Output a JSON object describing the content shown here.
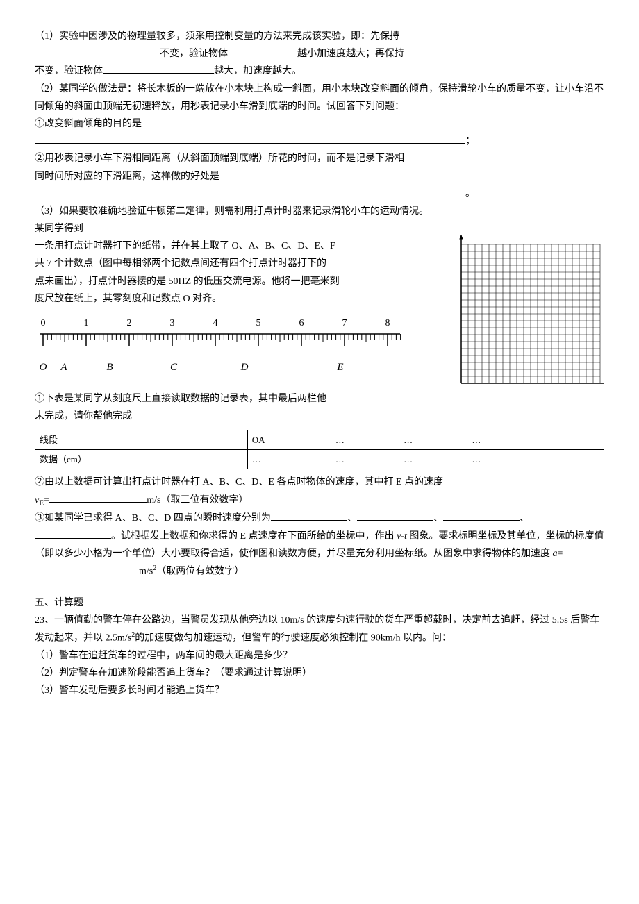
{
  "p1": {
    "line1_pre": "（1）实验中因涉及的物理量较多，须采用控制变量的方法来完成该实验，即：先保持",
    "line2_mid1": "不变，验证物体",
    "line2_mid2": "越小加速度越大；再保持",
    "line3_mid": "不变，验证物体",
    "line3_end": "越大，加速度越大。"
  },
  "p2": {
    "intro": "（2）某同学的做法是：将长木板的一端放在小木块上构成一斜面，用小木块改变斜面的倾角，保持滑轮小车的质量不变，让小车沿不同倾角的斜面由顶端无初速释放，用秒表记录小车滑到底端的时间。试回答下列问题：",
    "q1": "①改变斜面倾角的目的是",
    "q2a": "②用秒表记录小车下滑相同距离（从斜面顶端到底端）所花的时间，而不是记录下滑相",
    "q2b": "同时间所对应的下滑距离，这样做的好处是"
  },
  "p3": {
    "l1": "（3）如果要较准确地验证牛顿第二定律，则需利用打点计时器来记录滑轮小车的运动情况。某同学得到",
    "l2": "一条用打点计时器打下的纸带，并在其上取了 O、A、B、C、D、E、F",
    "l3": "共 7 个计数点（图中每相邻两个记数点间还有四个打点计时器打下的",
    "l4": "点未画出），打点计时器接的是 50HZ 的低压交流电源。他将一把毫米刻",
    "l5": "度尺放在纸上，其零刻度和记数点 O 对齐。"
  },
  "ruler": {
    "ticks": [
      "0",
      "1",
      "2",
      "3",
      "4",
      "5",
      "6",
      "7",
      "8"
    ],
    "points": [
      "O",
      "A",
      "B",
      "C",
      "D",
      "E"
    ],
    "point_x": [
      12,
      42,
      108,
      200,
      302,
      440
    ]
  },
  "grid": {
    "cols": 20,
    "rows": 20,
    "cell": 10,
    "arrow_color": "#000"
  },
  "q31": "①下表是某同学从刻度尺上直接读取数据的记录表，其中最后两栏他",
  "q31b": "未完成，请你帮他完成",
  "table": {
    "r1": [
      "线段",
      "OA",
      "…",
      "…",
      "…",
      "",
      ""
    ],
    "r2": [
      "数据（cm）",
      "…",
      "…",
      "…",
      "…",
      "",
      ""
    ]
  },
  "q32": {
    "a": "②由以上数据可计算出打点计时器在打 A、B、C、D、E 各点时物体的速度，其中打 E 点的速度",
    "b_pre": "v",
    "b_sub": "E",
    "b_eq": "=",
    "b_unit": "m/s（取三位有效数字）"
  },
  "q33": {
    "a": "③如某同学已求得 A、B、C、D 四点的瞬时速度分别为",
    "b": "。试根据发上数据和你求得的 E 点速度在下面所给的坐标中，作出 ",
    "vt": "v-t",
    "b2": " 图象。要求标明坐标及其单位，坐标的标度值（即以多少小格为一个单位）大小要取得合适，使作图和读数方便，并尽量充分利用坐标纸。从图象中求得物体的加速度 ",
    "a_sym": "a",
    "eq": "=",
    "unit": "m/s",
    "sup": "2",
    "tail": "（取两位有效数字）"
  },
  "sec5": "五、计算题",
  "q23": {
    "stem": "23、一辆值勤的警车停在公路边，当警员发现从他旁边以 10m/s 的速度匀速行驶的货车严重超载时，决定前去追赶，经过 5.5s 后警车发动起来，并以 2.5m/s",
    "sup": "2",
    "stem2": "的加速度做匀加速运动，但警车的行驶速度必须控制在 90km/h 以内。问：",
    "s1": "（1）警车在追赶货车的过程中，两车间的最大距离是多少？",
    "s2": "（2）判定警车在加速阶段能否追上货车？（要求通过计算说明）",
    "s3": "（3）警车发动后要多长时间才能追上货车？"
  }
}
